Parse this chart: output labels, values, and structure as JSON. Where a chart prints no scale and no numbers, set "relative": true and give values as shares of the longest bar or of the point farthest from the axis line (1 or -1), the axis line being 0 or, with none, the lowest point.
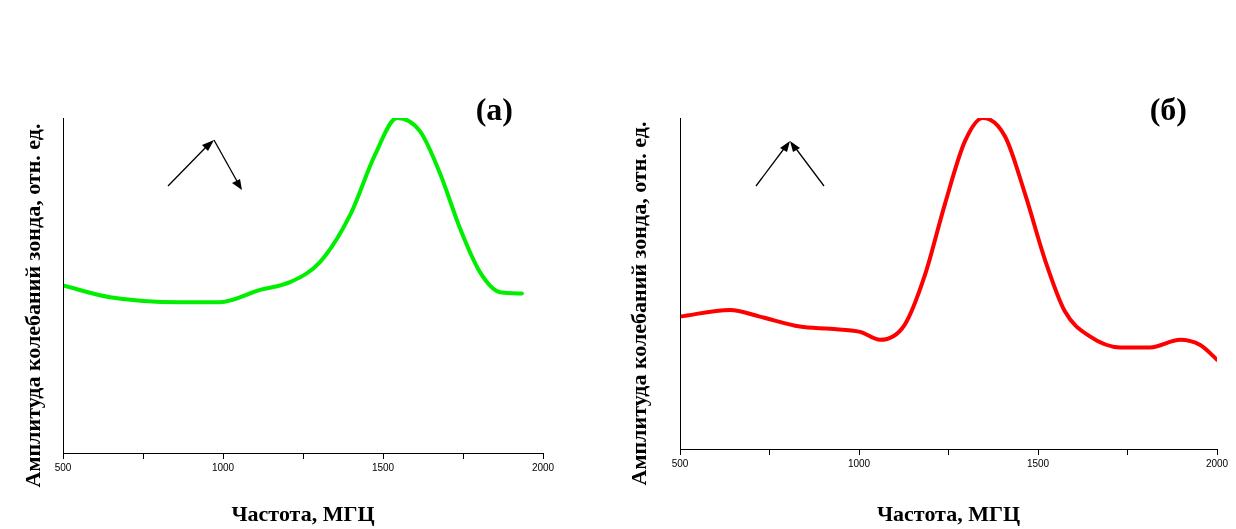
{
  "chart_data": [
    {
      "type": "line",
      "title": "(а)",
      "xlabel": "Частота, МГЦ",
      "ylabel": "Амплитуда колебаний зонда, отн. ед.",
      "relative": true,
      "xlim": [
        500,
        2000
      ],
      "xticks": [
        500,
        {
          "value": 750,
          "label": null
        },
        1000,
        {
          "value": 1250,
          "label": null
        },
        1500,
        {
          "value": 1750,
          "label": null
        },
        2000
      ],
      "grid": false,
      "legend": false,
      "marker": "none",
      "line_style": "solid",
      "series": [
        {
          "color": "#00ee00",
          "x": [
            500,
            647,
            866,
            990,
            1116,
            1209,
            1303,
            1397,
            1475,
            1544,
            1616,
            1678,
            1741,
            1803,
            1866,
            1934
          ],
          "values": [
            0.5,
            0.465,
            0.45,
            0.45,
            0.487,
            0.51,
            0.57,
            0.71,
            0.89,
            1,
            0.96,
            0.835,
            0.67,
            0.54,
            0.48,
            0.476
          ]
        }
      ]
    },
    {
      "type": "line",
      "title": "(б)",
      "xlabel": "Частота, МГЦ",
      "ylabel": "Амплитуда колебаний зонда, отн. ед.",
      "relative": true,
      "xlim": [
        500,
        2000
      ],
      "xticks": [
        500,
        {
          "value": 750,
          "label": null
        },
        1000,
        {
          "value": 1250,
          "label": null
        },
        1500,
        {
          "value": 1750,
          "label": null
        },
        2000
      ],
      "grid": false,
      "legend": false,
      "marker": "none",
      "line_style": "solid",
      "series": [
        {
          "color": "#ff0000",
          "x": [
            500,
            640,
            723,
            835,
            919,
            1003,
            1059,
            1128,
            1184,
            1240,
            1296,
            1346,
            1408,
            1464,
            1520,
            1575,
            1645,
            1729,
            1813,
            1897,
            1953,
            2000
          ],
          "values": [
            0.4,
            0.42,
            0.4,
            0.37,
            0.363,
            0.354,
            0.33,
            0.376,
            0.525,
            0.74,
            0.93,
            1,
            0.944,
            0.77,
            0.57,
            0.416,
            0.34,
            0.307,
            0.307,
            0.33,
            0.314,
            0.27
          ]
        }
      ]
    }
  ]
}
